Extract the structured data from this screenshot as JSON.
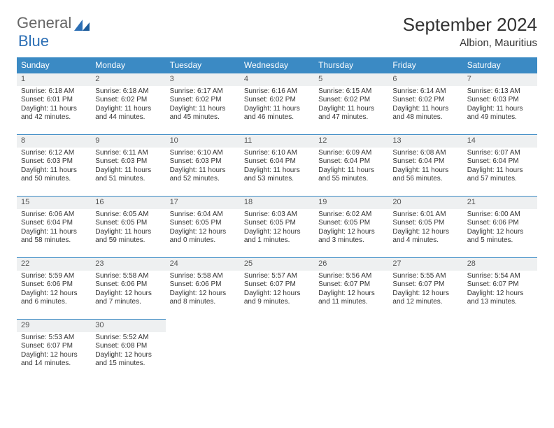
{
  "logo": {
    "text1": "General",
    "text2": "Blue"
  },
  "title": "September 2024",
  "location": "Albion, Mauritius",
  "calendar": {
    "type": "calendar-table",
    "header_bg": "#3b8ac4",
    "header_fg": "#ffffff",
    "border_color": "#3b8ac4",
    "daynum_bg": "#eef0f1",
    "days": [
      "Sunday",
      "Monday",
      "Tuesday",
      "Wednesday",
      "Thursday",
      "Friday",
      "Saturday"
    ],
    "start_weekday": 0,
    "cells": [
      {
        "n": 1,
        "sr": "6:18 AM",
        "ss": "6:01 PM",
        "dh": 11,
        "dm": 42
      },
      {
        "n": 2,
        "sr": "6:18 AM",
        "ss": "6:02 PM",
        "dh": 11,
        "dm": 44
      },
      {
        "n": 3,
        "sr": "6:17 AM",
        "ss": "6:02 PM",
        "dh": 11,
        "dm": 45
      },
      {
        "n": 4,
        "sr": "6:16 AM",
        "ss": "6:02 PM",
        "dh": 11,
        "dm": 46
      },
      {
        "n": 5,
        "sr": "6:15 AM",
        "ss": "6:02 PM",
        "dh": 11,
        "dm": 47
      },
      {
        "n": 6,
        "sr": "6:14 AM",
        "ss": "6:02 PM",
        "dh": 11,
        "dm": 48
      },
      {
        "n": 7,
        "sr": "6:13 AM",
        "ss": "6:03 PM",
        "dh": 11,
        "dm": 49
      },
      {
        "n": 8,
        "sr": "6:12 AM",
        "ss": "6:03 PM",
        "dh": 11,
        "dm": 50
      },
      {
        "n": 9,
        "sr": "6:11 AM",
        "ss": "6:03 PM",
        "dh": 11,
        "dm": 51
      },
      {
        "n": 10,
        "sr": "6:10 AM",
        "ss": "6:03 PM",
        "dh": 11,
        "dm": 52
      },
      {
        "n": 11,
        "sr": "6:10 AM",
        "ss": "6:04 PM",
        "dh": 11,
        "dm": 53
      },
      {
        "n": 12,
        "sr": "6:09 AM",
        "ss": "6:04 PM",
        "dh": 11,
        "dm": 55
      },
      {
        "n": 13,
        "sr": "6:08 AM",
        "ss": "6:04 PM",
        "dh": 11,
        "dm": 56
      },
      {
        "n": 14,
        "sr": "6:07 AM",
        "ss": "6:04 PM",
        "dh": 11,
        "dm": 57
      },
      {
        "n": 15,
        "sr": "6:06 AM",
        "ss": "6:04 PM",
        "dh": 11,
        "dm": 58
      },
      {
        "n": 16,
        "sr": "6:05 AM",
        "ss": "6:05 PM",
        "dh": 11,
        "dm": 59
      },
      {
        "n": 17,
        "sr": "6:04 AM",
        "ss": "6:05 PM",
        "dh": 12,
        "dm": 0
      },
      {
        "n": 18,
        "sr": "6:03 AM",
        "ss": "6:05 PM",
        "dh": 12,
        "dm": 1
      },
      {
        "n": 19,
        "sr": "6:02 AM",
        "ss": "6:05 PM",
        "dh": 12,
        "dm": 3
      },
      {
        "n": 20,
        "sr": "6:01 AM",
        "ss": "6:05 PM",
        "dh": 12,
        "dm": 4
      },
      {
        "n": 21,
        "sr": "6:00 AM",
        "ss": "6:06 PM",
        "dh": 12,
        "dm": 5
      },
      {
        "n": 22,
        "sr": "5:59 AM",
        "ss": "6:06 PM",
        "dh": 12,
        "dm": 6
      },
      {
        "n": 23,
        "sr": "5:58 AM",
        "ss": "6:06 PM",
        "dh": 12,
        "dm": 7
      },
      {
        "n": 24,
        "sr": "5:58 AM",
        "ss": "6:06 PM",
        "dh": 12,
        "dm": 8
      },
      {
        "n": 25,
        "sr": "5:57 AM",
        "ss": "6:07 PM",
        "dh": 12,
        "dm": 9
      },
      {
        "n": 26,
        "sr": "5:56 AM",
        "ss": "6:07 PM",
        "dh": 12,
        "dm": 11
      },
      {
        "n": 27,
        "sr": "5:55 AM",
        "ss": "6:07 PM",
        "dh": 12,
        "dm": 12
      },
      {
        "n": 28,
        "sr": "5:54 AM",
        "ss": "6:07 PM",
        "dh": 12,
        "dm": 13
      },
      {
        "n": 29,
        "sr": "5:53 AM",
        "ss": "6:07 PM",
        "dh": 12,
        "dm": 14
      },
      {
        "n": 30,
        "sr": "5:52 AM",
        "ss": "6:08 PM",
        "dh": 12,
        "dm": 15
      }
    ],
    "labels": {
      "sunrise": "Sunrise:",
      "sunset": "Sunset:",
      "daylight_prefix": "Daylight:",
      "hours_word": "hours",
      "and_word": "and",
      "minutes_word": "minutes."
    }
  }
}
